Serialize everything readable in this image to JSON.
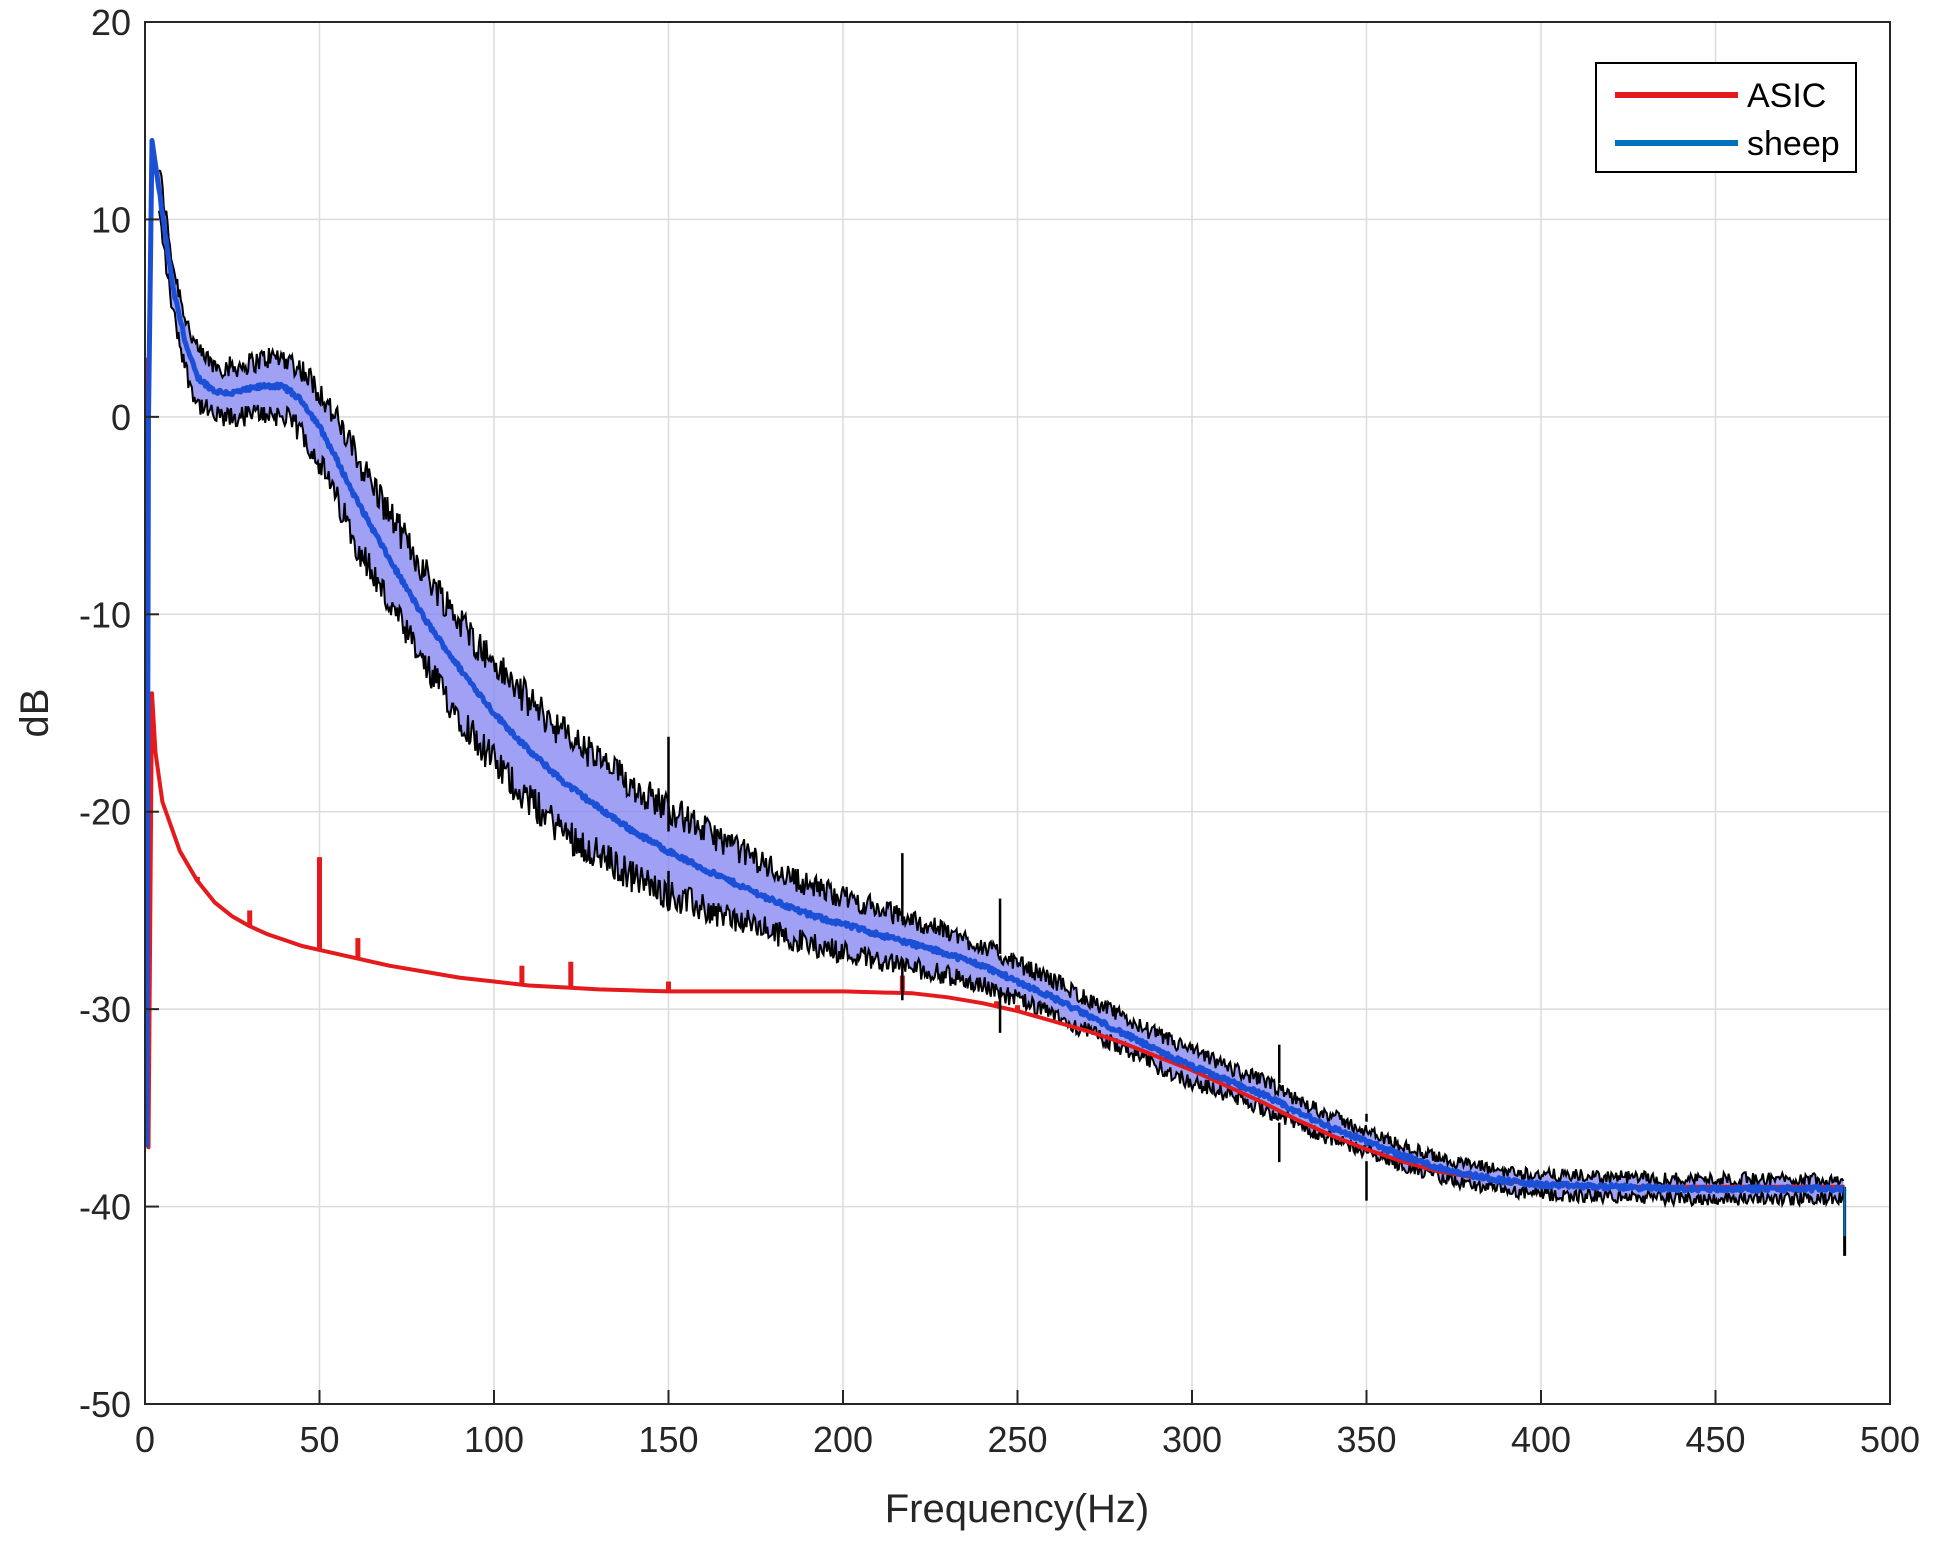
{
  "chart_data": {
    "type": "line",
    "title": "",
    "xlabel": "Frequency(Hz)",
    "ylabel": "dB",
    "xlim": [
      0,
      500
    ],
    "ylim": [
      -50,
      20
    ],
    "xticks": [
      0,
      50,
      100,
      150,
      200,
      250,
      300,
      350,
      400,
      450,
      500
    ],
    "yticks": [
      20,
      10,
      0,
      -10,
      -20,
      -30,
      -40,
      -50
    ],
    "xtick_labels": [
      "0",
      "50",
      "100",
      "150",
      "200",
      "250",
      "300",
      "350",
      "400",
      "450",
      "500"
    ],
    "ytick_labels": [
      "20",
      "10",
      "0",
      "-10",
      "-20",
      "-30",
      "-40",
      "-50"
    ],
    "grid": true,
    "legend_position": "top-right",
    "legend": [
      {
        "label": "ASIC",
        "color": "#e41a1c"
      },
      {
        "label": "sheep",
        "color": "#0072bd"
      }
    ],
    "band_fill_color": "#8080f0",
    "band_edge_color": "#000000",
    "series": [
      {
        "name": "ASIC",
        "color": "#e41a1c",
        "x": [
          0.5,
          1,
          2,
          3,
          5,
          10,
          15,
          20,
          25,
          30,
          35,
          40,
          45,
          50,
          60,
          70,
          80,
          90,
          100,
          110,
          120,
          130,
          140,
          150,
          160,
          170,
          180,
          190,
          200,
          210,
          220,
          230,
          240,
          250,
          260,
          270,
          280,
          290,
          300,
          310,
          320,
          330,
          340,
          350,
          360,
          370,
          380,
          390,
          400,
          420,
          440,
          460,
          480,
          487
        ],
        "y": [
          3,
          -37,
          -14,
          -17,
          -19.5,
          -22,
          -23.5,
          -24.6,
          -25.3,
          -25.8,
          -26.2,
          -26.5,
          -26.8,
          -27.0,
          -27.4,
          -27.8,
          -28.1,
          -28.4,
          -28.6,
          -28.8,
          -28.9,
          -29.0,
          -29.05,
          -29.1,
          -29.1,
          -29.1,
          -29.1,
          -29.1,
          -29.1,
          -29.15,
          -29.2,
          -29.4,
          -29.7,
          -30.1,
          -30.6,
          -31.1,
          -31.7,
          -32.4,
          -33.1,
          -33.9,
          -34.7,
          -35.6,
          -36.4,
          -37.1,
          -37.7,
          -38.2,
          -38.5,
          -38.7,
          -38.9,
          -39.0,
          -39.0,
          -39.0,
          -39.0,
          -39.0
        ],
        "spikes": [
          {
            "x": 15,
            "y": -23.3
          },
          {
            "x": 30,
            "y": -25.0
          },
          {
            "x": 50,
            "y": -22.3
          },
          {
            "x": 61,
            "y": -26.4
          },
          {
            "x": 108,
            "y": -27.8
          },
          {
            "x": 122,
            "y": -27.6
          },
          {
            "x": 150,
            "y": -28.6
          },
          {
            "x": 217,
            "y": -28.3
          },
          {
            "x": 244,
            "y": -29.6
          },
          {
            "x": 250,
            "y": -29.8
          }
        ]
      },
      {
        "name": "sheep",
        "color": "#0072bd",
        "x": [
          0.5,
          1,
          2,
          4,
          6,
          8,
          10,
          12,
          15,
          20,
          25,
          30,
          35,
          40,
          45,
          50,
          55,
          60,
          70,
          80,
          90,
          100,
          110,
          120,
          130,
          140,
          150,
          160,
          170,
          180,
          190,
          200,
          210,
          220,
          230,
          240,
          250,
          260,
          270,
          280,
          290,
          300,
          310,
          320,
          330,
          340,
          350,
          360,
          370,
          380,
          390,
          400,
          420,
          440,
          460,
          480,
          487
        ],
        "y": [
          -37,
          0,
          14,
          11.5,
          9,
          6.5,
          5,
          3.5,
          2,
          1.3,
          1.2,
          1.4,
          1.6,
          1.5,
          0.8,
          -0.5,
          -2.2,
          -4.0,
          -7.2,
          -10.2,
          -12.7,
          -15.0,
          -16.9,
          -18.5,
          -19.8,
          -21.0,
          -22.0,
          -22.9,
          -23.7,
          -24.5,
          -25.2,
          -25.7,
          -26.2,
          -26.7,
          -27.2,
          -27.8,
          -28.6,
          -29.4,
          -30.3,
          -31.2,
          -32.1,
          -32.9,
          -33.6,
          -34.3,
          -35.2,
          -36.0,
          -36.7,
          -37.4,
          -38.0,
          -38.4,
          -38.7,
          -38.9,
          -39.0,
          -39.1,
          -39.1,
          -39.1,
          -39.1
        ],
        "band_halfwidth": [
          1.2,
          1.2,
          1.2,
          1.2,
          1.2,
          1.2,
          1.2,
          1.3,
          1.3,
          1.3,
          1.3,
          1.3,
          1.4,
          1.5,
          1.6,
          1.8,
          2.0,
          2.2,
          2.3,
          2.4,
          2.4,
          2.5,
          2.5,
          2.5,
          2.4,
          2.3,
          2.2,
          2.0,
          1.8,
          1.6,
          1.5,
          1.4,
          1.3,
          1.2,
          1.1,
          1.0,
          0.9,
          0.9,
          0.8,
          0.8,
          0.8,
          0.8,
          0.7,
          0.7,
          0.6,
          0.6,
          0.5,
          0.5,
          0.5,
          0.5,
          0.5,
          0.5,
          0.5,
          0.5,
          0.5,
          0.5,
          0.5
        ],
        "spikes": [
          {
            "x": 150,
            "y": -16.2
          },
          {
            "x": 217,
            "y": -22.1
          },
          {
            "x": 245,
            "y": -24.4
          },
          {
            "x": 325,
            "y": -31.8
          },
          {
            "x": 350,
            "y": -35.3
          }
        ],
        "end_drop": {
          "x": 487,
          "y": -42.5
        }
      }
    ]
  }
}
